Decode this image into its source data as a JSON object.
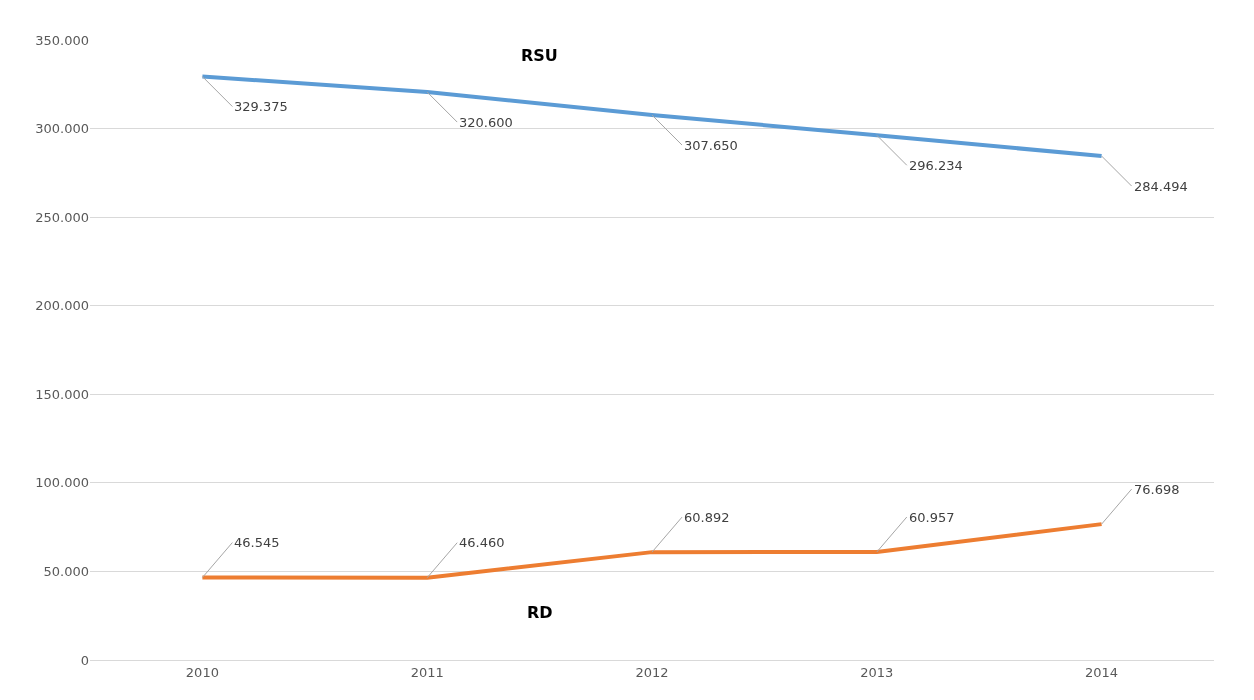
{
  "chart_data": {
    "type": "line",
    "categories": [
      "2010",
      "2011",
      "2012",
      "2013",
      "2014"
    ],
    "series": [
      {
        "name": "RSU",
        "color": "#5b9bd5",
        "values": [
          329375,
          320600,
          307650,
          296234,
          284494
        ],
        "value_labels": [
          "329.375",
          "320.600",
          "307.650",
          "296.234",
          "284.494"
        ]
      },
      {
        "name": "RD",
        "color": "#ed7d31",
        "values": [
          46545,
          46460,
          60892,
          60957,
          76698
        ],
        "value_labels": [
          "46.545",
          "46.460",
          "60.892",
          "60.957",
          "76.698"
        ]
      }
    ],
    "ylim": [
      0,
      350000
    ],
    "yticks": [
      0,
      {
        "value": 50000,
        "label": "50.000"
      },
      {
        "value": 100000,
        "label": "100.000"
      },
      {
        "value": 150000,
        "label": "150.000"
      },
      {
        "value": 200000,
        "label": "200.000"
      },
      {
        "value": 250000,
        "label": "250.000"
      },
      {
        "value": 300000,
        "label": "300.000"
      },
      {
        "value": 350000,
        "label": "350.000"
      }
    ],
    "grid": "y",
    "legend": false,
    "marker": "none",
    "line_style": "solid"
  }
}
